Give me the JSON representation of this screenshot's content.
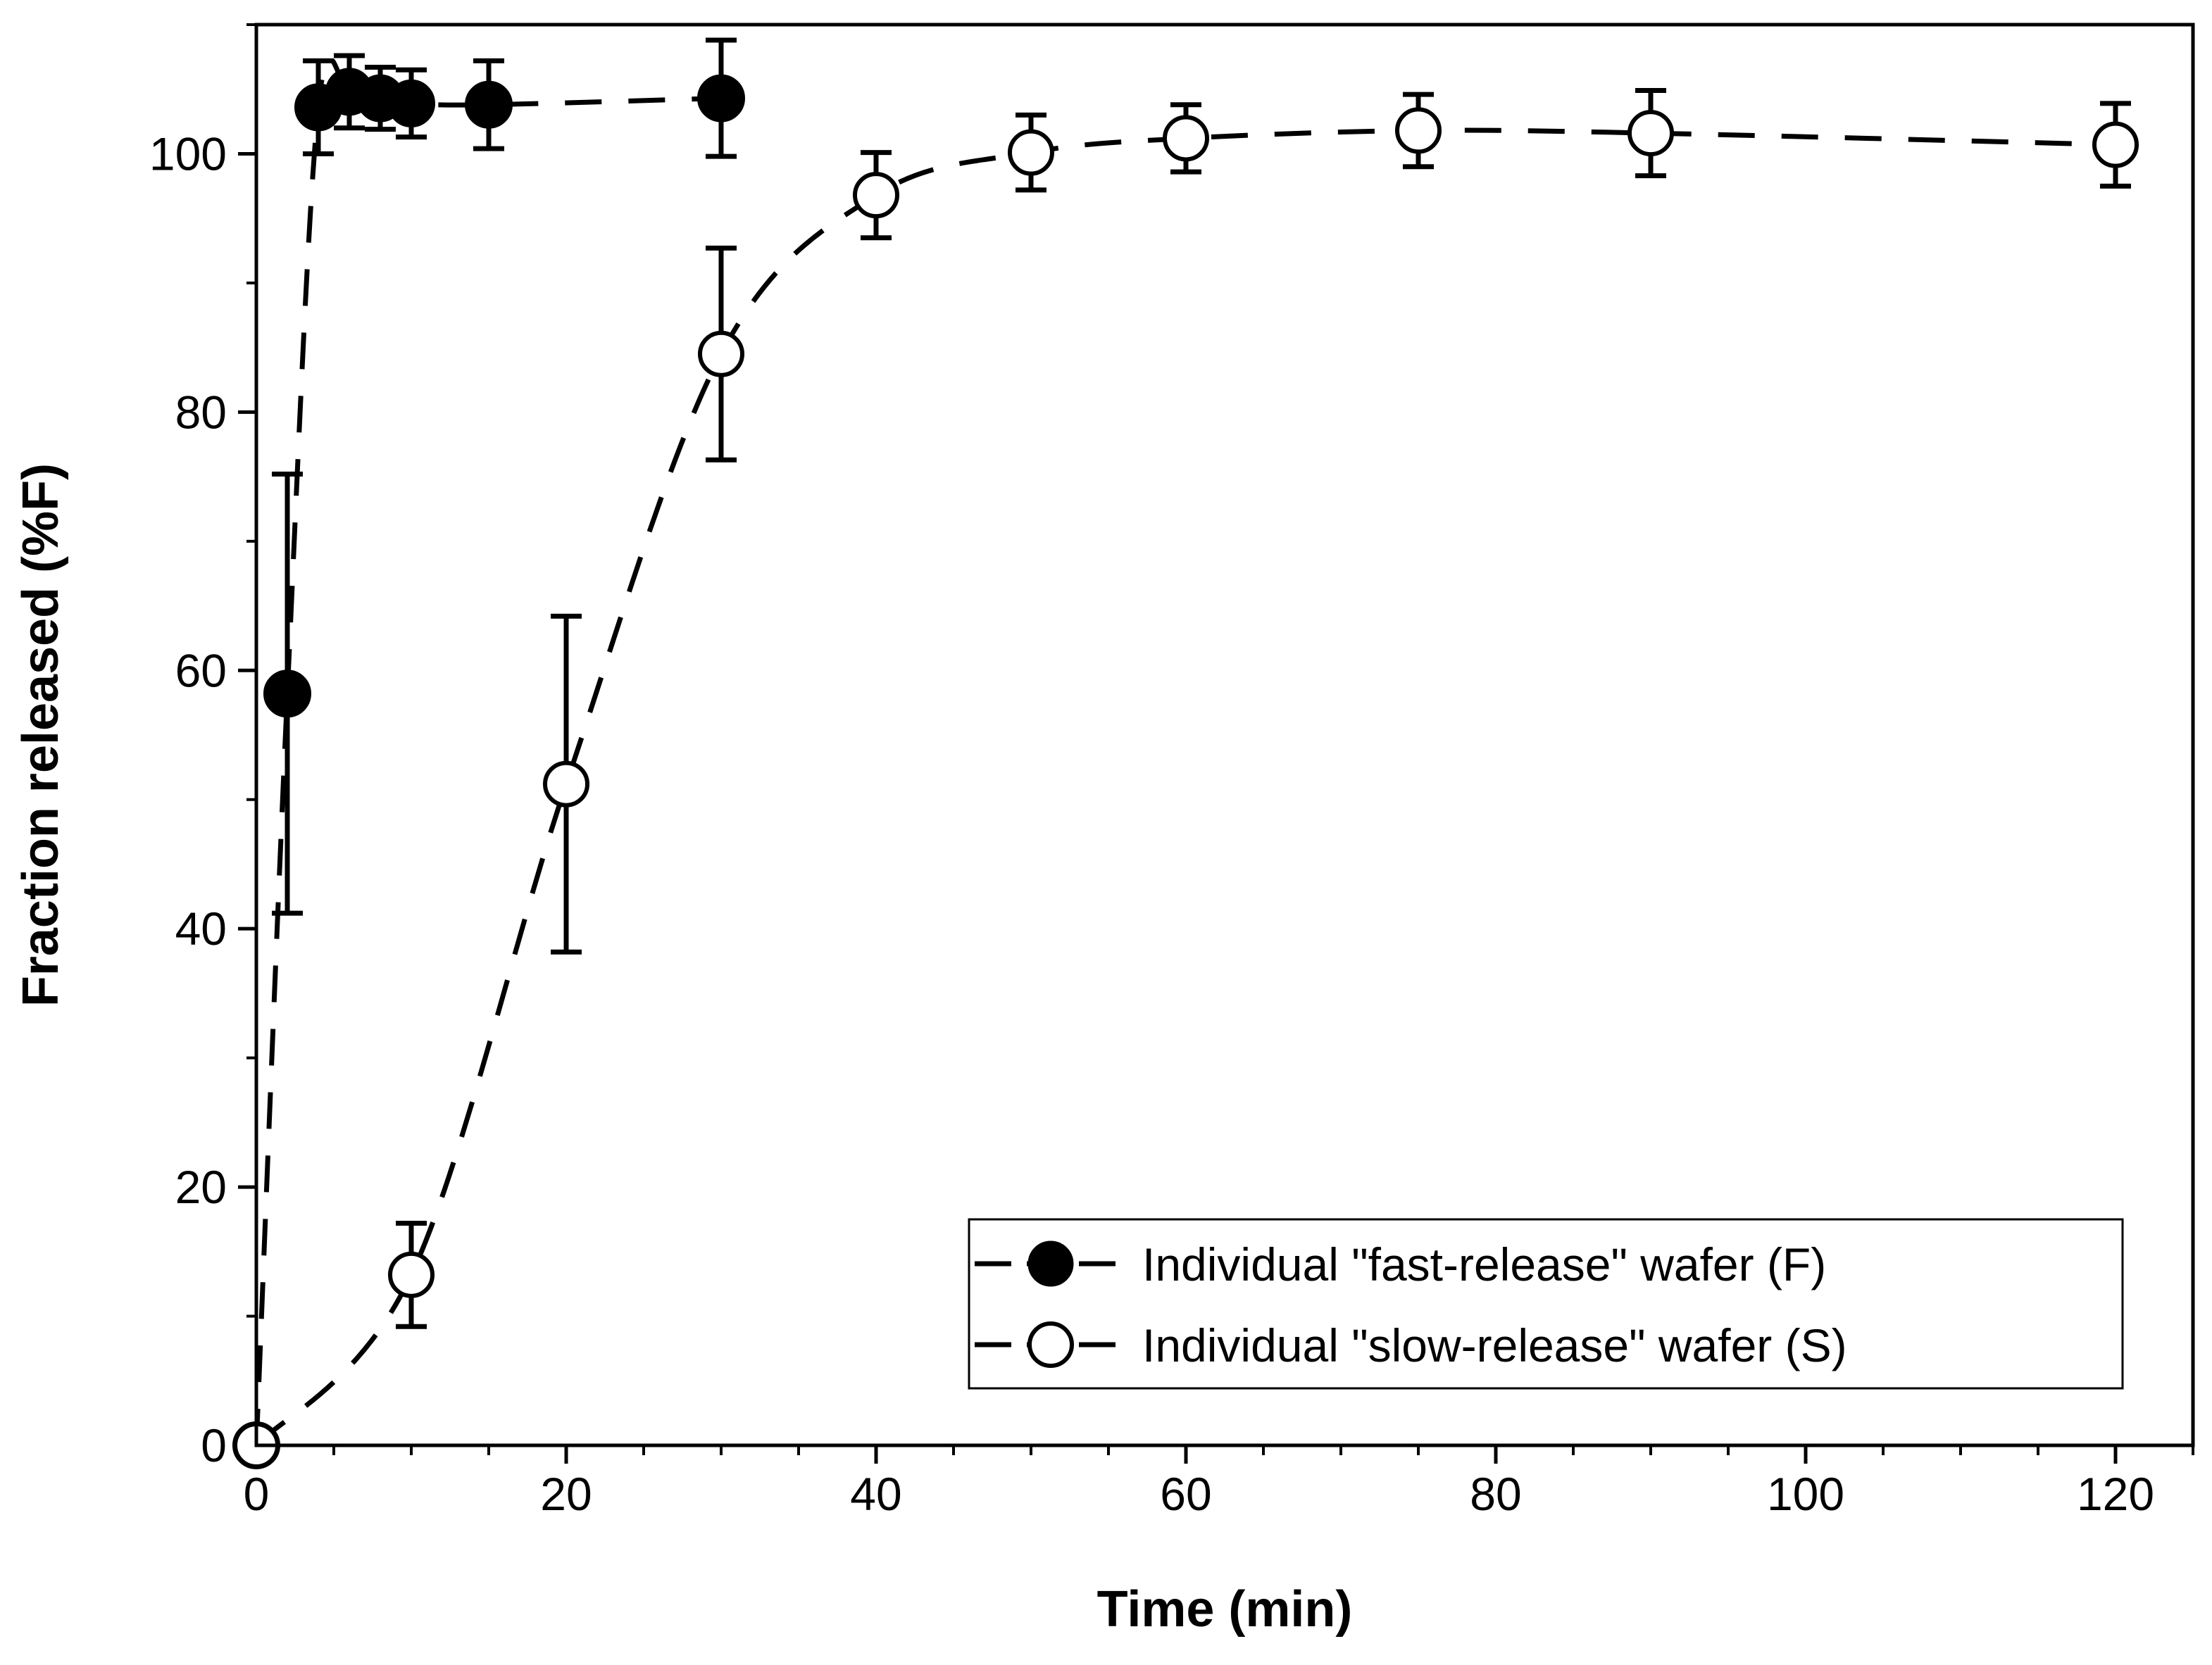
{
  "chart_data": {
    "type": "scatter",
    "title": "",
    "xlabel": "Time (min)",
    "ylabel": "Fraction released (%F)",
    "xlim": [
      0,
      125
    ],
    "ylim": [
      0,
      110
    ],
    "xticks": [
      0,
      20,
      40,
      60,
      80,
      100,
      120
    ],
    "yticks": [
      0,
      20,
      40,
      60,
      80,
      100
    ],
    "x_minor_step": 5,
    "y_minor_step": 10,
    "legend_position": "bottom-right",
    "series": [
      {
        "name": "Individual \"fast-release\" wafer (F)",
        "marker": "filled-circle",
        "line": "dashed",
        "x": [
          0,
          2,
          4,
          6,
          8,
          10,
          15,
          30
        ],
        "y": [
          0,
          58.2,
          103.6,
          104.8,
          104.3,
          103.9,
          103.8,
          104.3
        ],
        "err": [
          0,
          17,
          3.6,
          2.8,
          2.4,
          2.6,
          3.4,
          4.5
        ]
      },
      {
        "name": "Individual \"slow-release\" wafer (S)",
        "marker": "open-circle",
        "line": "dashed",
        "x": [
          0,
          10,
          20,
          30,
          40,
          50,
          60,
          75,
          90,
          120
        ],
        "y": [
          0,
          13.2,
          51.2,
          84.5,
          96.8,
          100.1,
          101.2,
          101.8,
          101.6,
          100.7
        ],
        "err": [
          0,
          4,
          13,
          8.2,
          3.3,
          2.9,
          2.6,
          2.8,
          3.3,
          3.2
        ]
      }
    ]
  },
  "colors": {
    "ink": "#000000",
    "open_fill": "#ffffff"
  }
}
